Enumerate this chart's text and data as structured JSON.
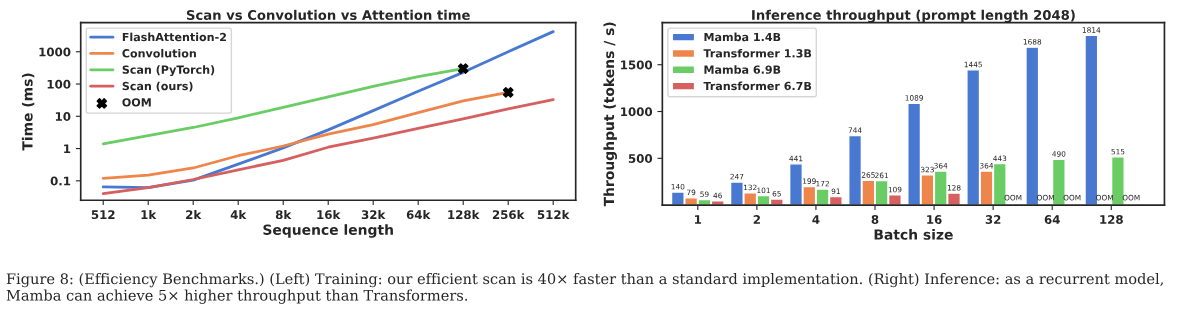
{
  "chart_data": [
    {
      "type": "line",
      "title": "Scan vs Convolution vs Attention time",
      "xlabel": "Sequence length",
      "ylabel": "Time (ms)",
      "categories": [
        "512",
        "1k",
        "2k",
        "4k",
        "8k",
        "16k",
        "32k",
        "64k",
        "128k",
        "256k",
        "512k"
      ],
      "log": "y",
      "ylim": [
        0.025,
        8000
      ],
      "yticks": [
        0.1,
        1,
        10,
        100,
        1000
      ],
      "legend": "top left",
      "grid": false,
      "series": [
        {
          "name": "FlashAttention-2",
          "color": "#4878d0",
          "values": [
            0.065,
            0.062,
            0.105,
            0.33,
            1.05,
            3.8,
            15,
            60,
            230,
            1000,
            4200
          ]
        },
        {
          "name": "Convolution",
          "color": "#ee854a",
          "values": [
            0.12,
            0.15,
            0.25,
            0.6,
            1.2,
            2.8,
            5.5,
            13,
            30,
            55,
            null
          ]
        },
        {
          "name": "Scan (PyTorch)",
          "color": "#6acc64",
          "values": [
            1.4,
            2.5,
            4.5,
            9,
            19,
            40,
            85,
            170,
            300,
            null,
            null
          ]
        },
        {
          "name": "Scan (ours)",
          "color": "#d65f5f",
          "values": [
            0.04,
            0.062,
            0.11,
            0.22,
            0.43,
            1.1,
            2.1,
            4.2,
            8.3,
            17,
            33
          ]
        },
        {
          "name": "OOM",
          "type": "scatter",
          "marker": "cross",
          "color": "#000000",
          "x": [
            "128k",
            "256k"
          ],
          "values": [
            300,
            55
          ]
        }
      ],
      "annotations": [
        "Figure 8: (Efficiency Benchmarks.) (Left) Training: our efficient scan is 40× faster than a standard implementation. (Right) Inference: as a recurrent model, Mamba can achieve 5× higher throughput than Transformers."
      ]
    },
    {
      "type": "bar",
      "title": "Inference throughput (prompt length 2048)",
      "xlabel": "Batch size",
      "ylabel": "Throughput (tokens / s)",
      "categories": [
        "1",
        "2",
        "4",
        "8",
        "16",
        "32",
        "64",
        "128"
      ],
      "ylim": [
        0,
        1950
      ],
      "yticks": [
        500,
        1000,
        1500
      ],
      "legend": "top left",
      "grid": false,
      "series": [
        {
          "name": "Mamba 1.4B",
          "color": "#4878d0",
          "values": [
            140,
            247,
            441,
            744,
            1089,
            1445,
            1688,
            1814
          ],
          "value_labels": [
            "140",
            "247",
            "441",
            "744",
            "1089",
            "1445",
            "1688",
            "1814"
          ]
        },
        {
          "name": "Transformer 1.3B",
          "color": "#ee854a",
          "values": [
            79,
            132,
            199,
            265,
            323,
            364,
            null,
            null
          ],
          "value_labels": [
            "79",
            "132",
            "199",
            "265",
            "323",
            "364",
            "OOM",
            "OOM"
          ]
        },
        {
          "name": "Mamba 6.9B",
          "color": "#6acc64",
          "values": [
            59,
            101,
            172,
            261,
            364,
            443,
            490,
            515
          ],
          "value_labels": [
            "59",
            "101",
            "172",
            "261",
            "364",
            "443",
            "490",
            "515"
          ]
        },
        {
          "name": "Transformer 6.7B",
          "color": "#d65f5f",
          "values": [
            46,
            65,
            91,
            109,
            128,
            null,
            null,
            null
          ],
          "value_labels": [
            "46",
            "65",
            "91",
            "109",
            "128",
            "OOM",
            "OOM",
            "OOM"
          ]
        }
      ]
    }
  ]
}
